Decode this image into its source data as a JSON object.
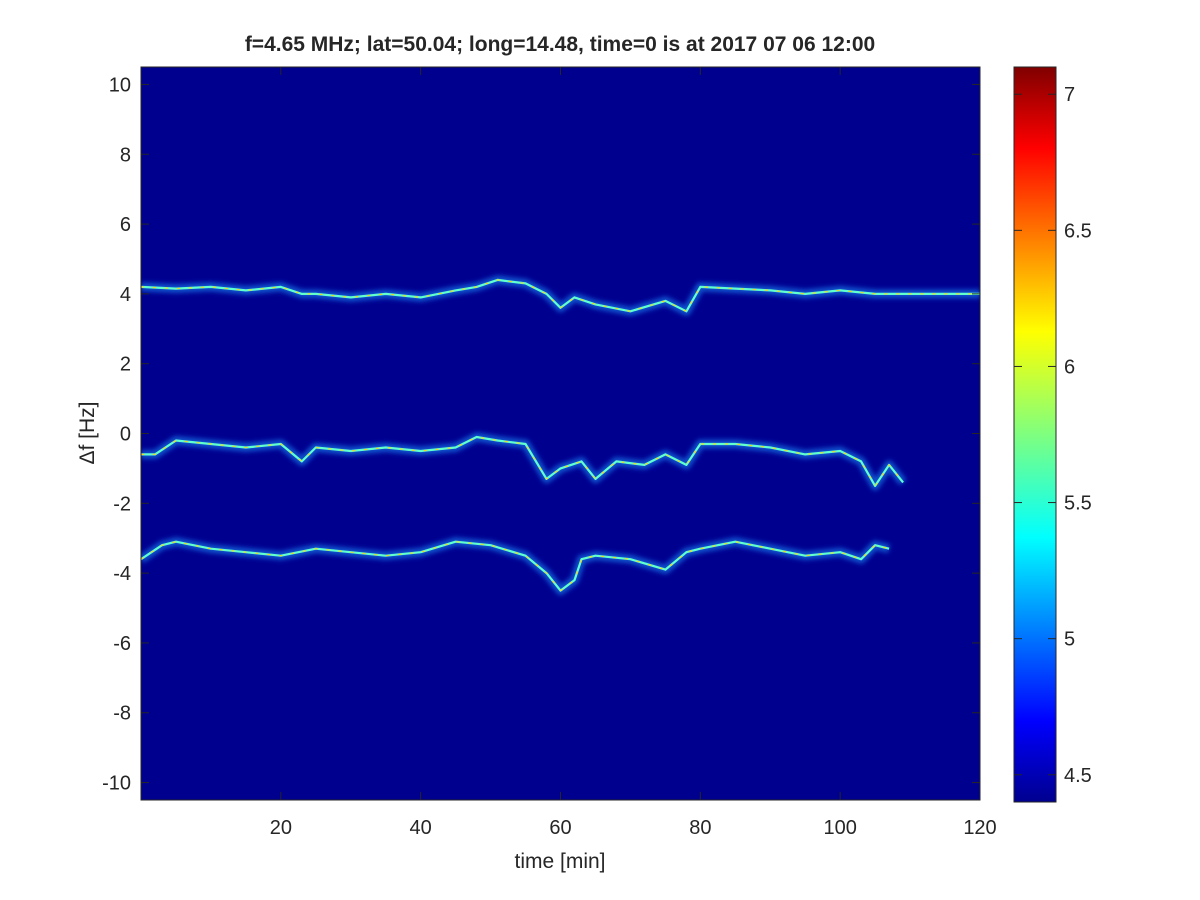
{
  "chart_data": {
    "type": "heatmap",
    "title": "f=4.65 MHz;  lat=50.04; long=14.48, time=0 is at 2017 07 06 12:00",
    "xlabel": "time [min]",
    "ylabel": "Δf [Hz]",
    "xlim": [
      0,
      120
    ],
    "ylim": [
      -10.5,
      10.5
    ],
    "xticks": [
      "20",
      "40",
      "60",
      "80",
      "100",
      "120"
    ],
    "yticks": [
      "10",
      "8",
      "6",
      "4",
      "2",
      "0",
      "-2",
      "-4",
      "-6",
      "-8",
      "-10"
    ],
    "colorbar": {
      "colormap": "jet",
      "range": [
        4.4,
        7.1
      ],
      "ticks": [
        "7",
        "6.5",
        "6",
        "5.5",
        "5",
        "4.5"
      ]
    },
    "background_color": "#00008f",
    "grid": false,
    "series": [
      {
        "x": [
          0,
          5,
          10,
          15,
          20,
          23,
          25,
          30,
          35,
          40,
          45,
          48,
          51,
          55,
          58,
          60,
          62,
          65,
          70,
          75,
          78,
          80,
          85,
          90,
          95,
          100,
          105,
          108,
          110,
          115,
          120
        ],
        "y": [
          4.2,
          4.15,
          4.2,
          4.1,
          4.2,
          4.0,
          4.0,
          3.9,
          4.0,
          3.9,
          4.1,
          4.2,
          4.4,
          4.3,
          4.0,
          3.6,
          3.9,
          3.7,
          3.5,
          3.8,
          3.5,
          4.2,
          4.15,
          4.1,
          4.0,
          4.1,
          4.0,
          4.0,
          4.0,
          4.0,
          4.0
        ]
      },
      {
        "x": [
          0,
          2,
          5,
          10,
          15,
          20,
          23,
          25,
          30,
          35,
          40,
          45,
          48,
          51,
          55,
          58,
          60,
          63,
          65,
          68,
          72,
          75,
          78,
          80,
          85,
          90,
          95,
          100,
          103,
          105,
          107,
          109
        ],
        "y": [
          -0.6,
          -0.6,
          -0.2,
          -0.3,
          -0.4,
          -0.3,
          -0.8,
          -0.4,
          -0.5,
          -0.4,
          -0.5,
          -0.4,
          -0.1,
          -0.2,
          -0.3,
          -1.3,
          -1.0,
          -0.8,
          -1.3,
          -0.8,
          -0.9,
          -0.6,
          -0.9,
          -0.3,
          -0.3,
          -0.4,
          -0.6,
          -0.5,
          -0.8,
          -1.5,
          -0.9,
          -1.4
        ]
      },
      {
        "x": [
          0,
          3,
          5,
          10,
          15,
          20,
          25,
          30,
          35,
          40,
          45,
          50,
          55,
          58,
          60,
          62,
          63,
          65,
          70,
          75,
          78,
          80,
          85,
          90,
          95,
          100,
          103,
          105,
          107
        ],
        "y": [
          -3.6,
          -3.2,
          -3.1,
          -3.3,
          -3.4,
          -3.5,
          -3.3,
          -3.4,
          -3.5,
          -3.4,
          -3.1,
          -3.2,
          -3.5,
          -4.0,
          -4.5,
          -4.2,
          -3.6,
          -3.5,
          -3.6,
          -3.9,
          -3.4,
          -3.3,
          -3.1,
          -3.3,
          -3.5,
          -3.4,
          -3.6,
          -3.2,
          -3.3
        ]
      }
    ]
  }
}
